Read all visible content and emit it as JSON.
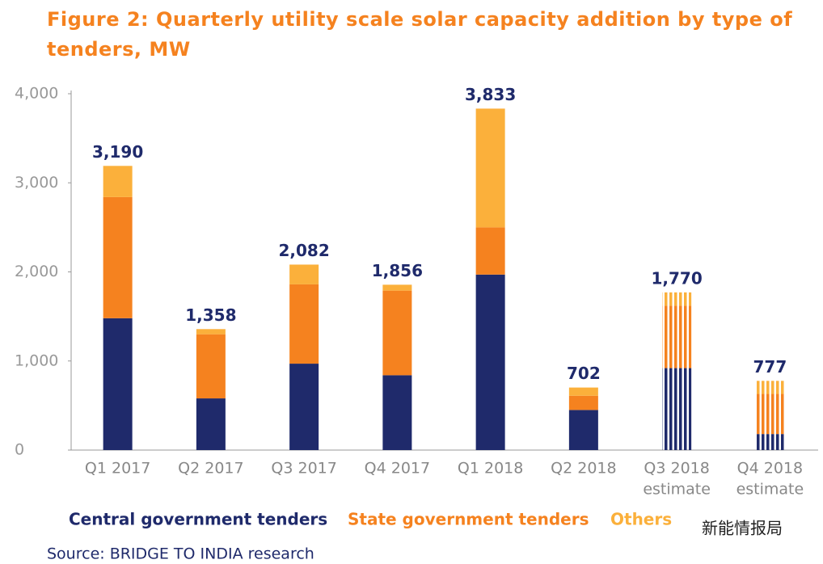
{
  "chart_data": {
    "type": "stacked_bar",
    "title": "Figure 2: Quarterly utility scale solar capacity addition by type of tenders, MW",
    "categories": [
      "Q1 2017",
      "Q2 2017",
      "Q3 2017",
      "Q4 2017",
      "Q1 2018",
      "Q2 2018",
      "Q3 2018",
      "Q4 2018"
    ],
    "category_notes": [
      null,
      null,
      null,
      null,
      null,
      null,
      "estimate",
      "estimate"
    ],
    "hatched": [
      false,
      false,
      false,
      false,
      false,
      false,
      true,
      true
    ],
    "series": [
      {
        "name": "Central government tenders",
        "color": "#1f2a6b",
        "values": [
          1480,
          580,
          970,
          840,
          1970,
          450,
          920,
          180
        ]
      },
      {
        "name": "State government tenders",
        "color": "#f5821f",
        "values": [
          1360,
          720,
          890,
          950,
          530,
          160,
          700,
          450
        ]
      },
      {
        "name": "Others",
        "color": "#fbb03b",
        "values": [
          350,
          58,
          222,
          66,
          1333,
          92,
          150,
          147
        ]
      }
    ],
    "totals": [
      3190,
      1358,
      2082,
      1856,
      3833,
      702,
      1770,
      777
    ],
    "total_labels": [
      "3,190",
      "1,358",
      "2,082",
      "1,856",
      "3,833",
      "702",
      "1,770",
      "777"
    ],
    "ylim": [
      0,
      4000
    ],
    "yticks": [
      0,
      {
        "value": 1000,
        "label": "1,000"
      },
      {
        "value": 2000,
        "label": "2,000"
      },
      {
        "value": 3000,
        "label": "3,000"
      },
      {
        "value": 4000,
        "label": "4,000"
      }
    ],
    "source": "Source: BRIDGE TO INDIA research",
    "watermark": "新能情报局"
  }
}
